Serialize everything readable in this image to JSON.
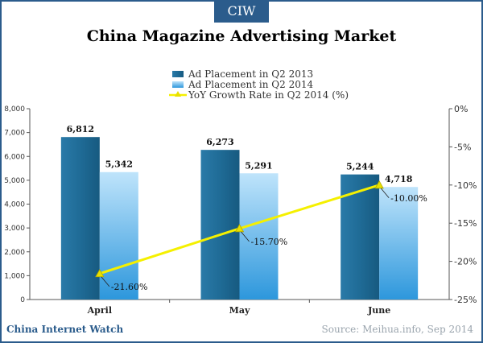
{
  "header": {
    "badge": "CIW"
  },
  "footer": {
    "brand": "China Internet Watch",
    "source": "Source: Meihua.info,  Sep 2014"
  },
  "chart_data": {
    "type": "bar",
    "title": "China Magazine Advertising Market",
    "categories": [
      "April",
      "May",
      "June"
    ],
    "series": [
      {
        "name": "Ad Placement in Q2 2013",
        "type": "bar",
        "axis": "left",
        "values": [
          6812,
          6273,
          5244
        ],
        "labels": [
          "6,812",
          "6,273",
          "5,244"
        ],
        "color": "#1f6b96"
      },
      {
        "name": "Ad Placement in Q2 2014",
        "type": "bar",
        "axis": "left",
        "values": [
          5342,
          5291,
          4718
        ],
        "labels": [
          "5,342",
          "5,291",
          "4,718"
        ],
        "color": "#5fb6ea"
      },
      {
        "name": "YoY Growth Rate  in Q2  2014 (%)",
        "type": "line",
        "axis": "right",
        "values": [
          -21.6,
          -15.7,
          -10.0
        ],
        "labels": [
          "-21.60%",
          "-15.70%",
          "-10.00%"
        ],
        "color": "#f5f000"
      }
    ],
    "ylim_left": [
      0,
      8000
    ],
    "yticks_left": [
      "0",
      "1,000",
      "2,000",
      "3,000",
      "4,000",
      "5,000",
      "6,000",
      "7,000",
      "8,000"
    ],
    "ylim_right": [
      -25,
      0
    ],
    "yticks_right": [
      "-25%",
      "-20%",
      "-15%",
      "-10%",
      "-5%",
      "0%"
    ],
    "grid": false,
    "legend": "top-center"
  }
}
